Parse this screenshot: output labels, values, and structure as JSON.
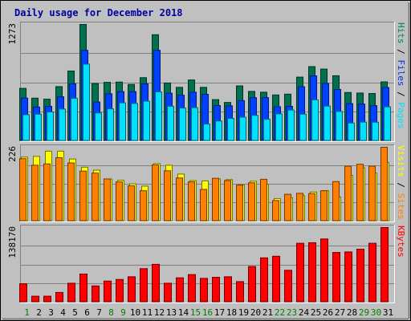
{
  "chart_data": {
    "type": "bar",
    "title": "Daily usage for December 2018",
    "categories": [
      "1",
      "2",
      "3",
      "4",
      "5",
      "6",
      "7",
      "8",
      "9",
      "10",
      "11",
      "12",
      "13",
      "14",
      "15",
      "16",
      "17",
      "18",
      "19",
      "20",
      "21",
      "22",
      "23",
      "24",
      "25",
      "26",
      "27",
      "28",
      "29",
      "30",
      "31"
    ],
    "weekend_days": [
      "1",
      "8",
      "9",
      "15",
      "16",
      "22",
      "23",
      "29",
      "30"
    ],
    "panels": [
      {
        "id": "hits",
        "axis_max_label": "1273",
        "ylim": [
          0,
          1273
        ],
        "ylabel_parts": [
          "Pages",
          "Files",
          "Hits"
        ],
        "ylabel_colors": [
          "#00e0ff",
          "#0030e0",
          "#008060"
        ],
        "series": [
          {
            "name": "Hits",
            "color": "#007050",
            "values": [
              574,
              467,
              456,
              593,
              764,
              1273,
              627,
              640,
              643,
              617,
              691,
              1161,
              633,
              585,
              666,
              585,
              451,
              420,
              601,
              541,
              532,
              502,
              511,
              697,
              812,
              785,
              712,
              529,
              523,
              518,
              645
            ]
          },
          {
            "name": "Files",
            "color": "#0040ff",
            "values": [
              468,
              370,
              378,
              482,
              624,
              990,
              425,
              515,
              539,
              539,
              624,
              991,
              521,
              500,
              532,
              509,
              386,
              383,
              440,
              472,
              473,
              373,
              377,
              592,
              711,
              628,
              562,
              407,
              403,
              385,
              583
            ]
          },
          {
            "name": "Pages",
            "color": "#00e0ff",
            "values": [
              286,
              292,
              316,
              348,
              465,
              839,
              305,
              350,
              416,
              409,
              434,
              536,
              379,
              359,
              363,
              184,
              217,
              245,
              259,
              279,
              236,
              295,
              337,
              292,
              448,
              380,
              322,
              195,
              205,
              204,
              372
            ]
          }
        ]
      },
      {
        "id": "visits",
        "axis_max_label": "226",
        "ylim": [
          0,
          226
        ],
        "ylabel_parts": [
          "Sites",
          "Visits"
        ],
        "ylabel_colors": [
          "#ff8000",
          "#ffff00"
        ],
        "series": [
          {
            "name": "Visits",
            "color": "#ffff00",
            "values": [
              196,
              198,
              214,
              214,
              190,
              165,
              156,
              129,
              125,
              114,
              107,
              176,
              171,
              144,
              124,
              123,
              129,
              127,
              111,
              122,
              113,
              69,
              72,
              78,
              89,
              93,
              74,
              140,
              163,
              147,
              180
            ]
          },
          {
            "name": "Sites",
            "color": "#ff8000",
            "values": [
              191,
              171,
              175,
              194,
              178,
              153,
              147,
              129,
              120,
              108,
              93,
              172,
              154,
              132,
              120,
              97,
              131,
              124,
              110,
              117,
              128,
              63,
              82,
              85,
              84,
              93,
              121,
              168,
              174,
              168,
              226
            ]
          }
        ]
      },
      {
        "id": "kbytes",
        "axis_max_label": "138170",
        "ylim": [
          0,
          138170
        ],
        "ylabel_parts": [
          "KBytes"
        ],
        "ylabel_colors": [
          "#ff0000"
        ],
        "series": [
          {
            "name": "KBytes",
            "color": "#ff0000",
            "values": [
              34000,
              11000,
              11000,
              18000,
              35000,
              52000,
              30000,
              39000,
              42000,
              47000,
              62000,
              70000,
              35000,
              45000,
              51000,
              44000,
              46000,
              47000,
              38000,
              66000,
              82000,
              85000,
              59000,
              109000,
              110000,
              117000,
              92000,
              93000,
              98000,
              109000,
              138170
            ]
          }
        ]
      }
    ]
  }
}
